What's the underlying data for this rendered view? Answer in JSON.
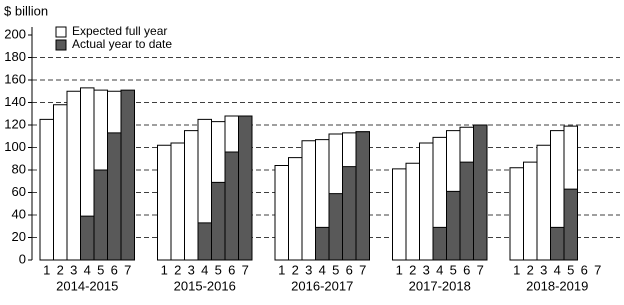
{
  "chart_data": {
    "type": "grouped-overlay-bar",
    "y_label": "$ billion",
    "groups": [
      "2014-2015",
      "2015-2016",
      "2016-2017",
      "2017-2018",
      "2018-2019"
    ],
    "subcategories": [
      "1",
      "2",
      "3",
      "4",
      "5",
      "6",
      "7"
    ],
    "series": [
      {
        "name": "Expected full year",
        "color": "#ffffff",
        "values": [
          [
            125,
            138,
            150,
            153,
            151,
            150,
            150
          ],
          [
            102,
            104,
            115,
            125,
            123,
            128,
            127
          ],
          [
            84,
            91,
            106,
            107,
            112,
            113,
            114
          ],
          [
            81,
            86,
            104,
            109,
            115,
            118,
            120
          ],
          [
            82,
            87,
            102,
            115,
            119,
            null,
            null
          ]
        ]
      },
      {
        "name": "Actual year to date",
        "color": "#595959",
        "values": [
          [
            null,
            null,
            null,
            39,
            80,
            113,
            151
          ],
          [
            null,
            null,
            null,
            33,
            69,
            96,
            128
          ],
          [
            null,
            null,
            null,
            29,
            59,
            83,
            114
          ],
          [
            null,
            null,
            null,
            29,
            61,
            87,
            120
          ],
          [
            null,
            null,
            null,
            29,
            63,
            null,
            null
          ]
        ]
      }
    ],
    "ylim": [
      0,
      200
    ],
    "yticks": [
      0,
      20,
      40,
      60,
      80,
      100,
      120,
      140,
      160,
      180,
      200
    ],
    "grid": true
  }
}
